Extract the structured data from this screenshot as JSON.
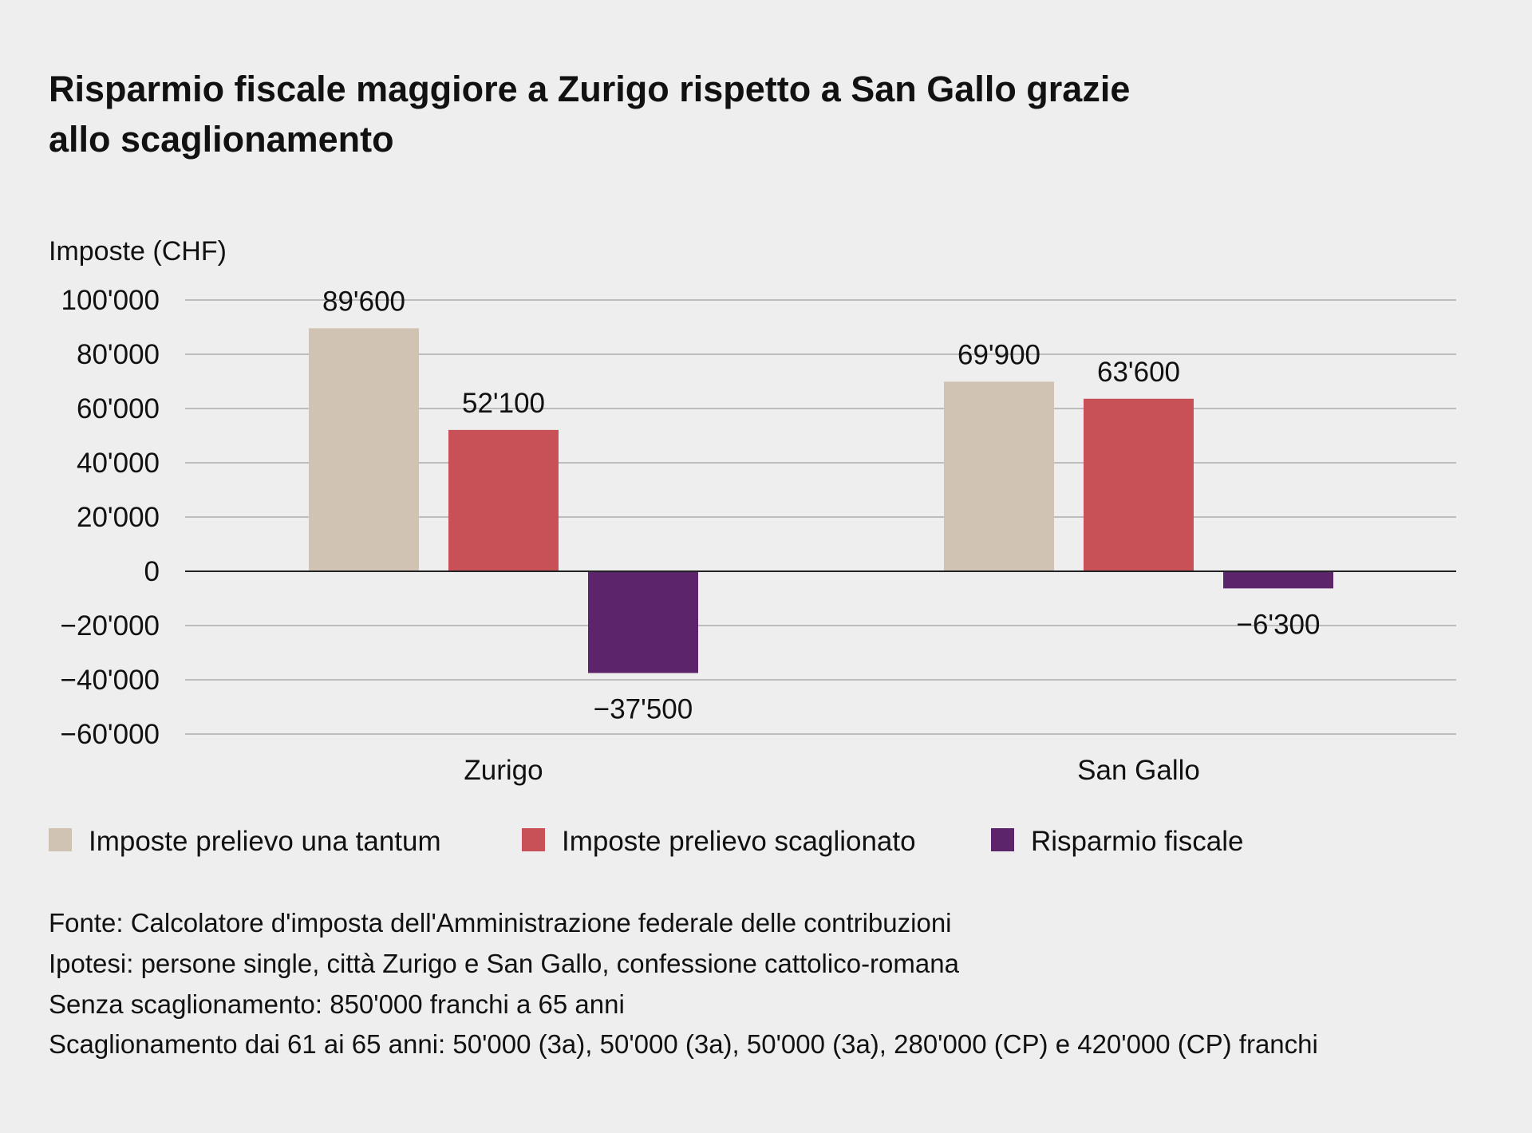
{
  "title_lines": [
    "Risparmio fiscale maggiore a Zurigo rispetto a San Gallo grazie",
    "allo scaglionamento"
  ],
  "chart_data": {
    "type": "bar",
    "title": "Risparmio fiscale maggiore a Zurigo rispetto a San Gallo grazie allo scaglionamento",
    "ylabel": "Imposte (CHF)",
    "xlabel": "",
    "ylim": [
      -60000,
      100000
    ],
    "yticks": [
      100000,
      80000,
      60000,
      40000,
      20000,
      0,
      -20000,
      -40000,
      -60000
    ],
    "ytick_labels": [
      "100'000",
      "80'000",
      "60'000",
      "40'000",
      "20'000",
      "0",
      "−20'000",
      "−40'000",
      "−60'000"
    ],
    "grid": true,
    "legend_placement": "bottom",
    "categories": [
      "Zurigo",
      "San Gallo"
    ],
    "series": [
      {
        "name": "Imposte prelievo una tantum",
        "color": "#d1c3b3",
        "values": [
          89600,
          69900
        ],
        "labels": [
          "89'600",
          "69'900"
        ]
      },
      {
        "name": "Imposte prelievo scaglionato",
        "color": "#c85158",
        "values": [
          52100,
          63600
        ],
        "labels": [
          "52'100",
          "63'600"
        ]
      },
      {
        "name": "Risparmio fiscale",
        "color": "#5c256b",
        "values": [
          -37500,
          -6300
        ],
        "labels": [
          "−37'500",
          "−6'300"
        ]
      }
    ]
  },
  "footnotes": [
    "Fonte: Calcolatore d'imposta dell'Amministrazione federale delle contribuzioni",
    "Ipotesi: persone single, città Zurigo e San Gallo, confessione cattolico-romana",
    "Senza scaglionamento: 850'000 franchi a 65 anni",
    "Scaglionamento dai 61 ai 65 anni: 50'000 (3a), 50'000 (3a), 50'000 (3a), 280'000 (CP) e 420'000 (CP) franchi"
  ]
}
